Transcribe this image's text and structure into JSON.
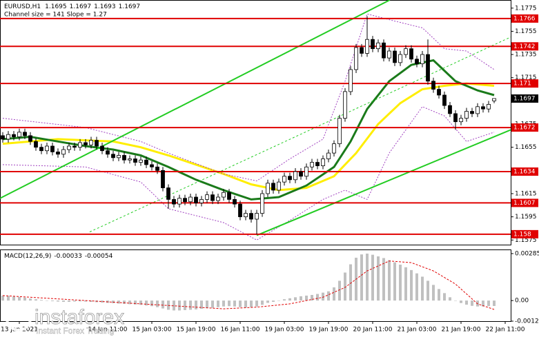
{
  "chart_data": [
    {
      "type": "candlestick",
      "title": "EURUSD,H1",
      "subtitle": "Channel size = 141 Slope = 1.27",
      "xlim": [
        -0.5,
        92
      ],
      "ylim": [
        1.1571,
        1.1782
      ],
      "yticks": [
        1.1775,
        1.1755,
        1.1735,
        1.1715,
        1.1695,
        1.1675,
        1.1655,
        1.1635,
        1.1615,
        1.1595,
        1.1575
      ],
      "levels": {
        "color": "#e00000",
        "values": [
          1.1766,
          1.1742,
          1.171,
          1.1672,
          1.1634,
          1.1607,
          1.158
        ]
      },
      "ohlc": [
        [
          1.1665,
          1.1668,
          1.1659,
          1.1662
        ],
        [
          1.1662,
          1.1669,
          1.1659,
          1.1666
        ],
        [
          1.1666,
          1.1669,
          1.1661,
          1.1664
        ],
        [
          1.1664,
          1.1671,
          1.1661,
          1.1668
        ],
        [
          1.1668,
          1.1671,
          1.1662,
          1.1665
        ],
        [
          1.1665,
          1.1668,
          1.1657,
          1.166
        ],
        [
          1.166,
          1.1663,
          1.1652,
          1.1655
        ],
        [
          1.1655,
          1.1658,
          1.1649,
          1.1652
        ],
        [
          1.1652,
          1.1659,
          1.1649,
          1.1656
        ],
        [
          1.1656,
          1.1659,
          1.1648,
          1.1651
        ],
        [
          1.1651,
          1.1654,
          1.1646,
          1.1649
        ],
        [
          1.1649,
          1.1656,
          1.1646,
          1.1653
        ],
        [
          1.1653,
          1.1659,
          1.165,
          1.1656
        ],
        [
          1.1656,
          1.1659,
          1.1652,
          1.1655
        ],
        [
          1.1655,
          1.1662,
          1.1652,
          1.1659
        ],
        [
          1.1659,
          1.1662,
          1.1654,
          1.1657
        ],
        [
          1.1657,
          1.1664,
          1.1654,
          1.1661
        ],
        [
          1.1661,
          1.1664,
          1.1653,
          1.1656
        ],
        [
          1.1656,
          1.1659,
          1.1649,
          1.1652
        ],
        [
          1.1652,
          1.1655,
          1.1646,
          1.1649
        ],
        [
          1.1649,
          1.1652,
          1.1643,
          1.1646
        ],
        [
          1.1646,
          1.1651,
          1.1643,
          1.1648
        ],
        [
          1.1648,
          1.1651,
          1.1641,
          1.1644
        ],
        [
          1.1644,
          1.1648,
          1.1641,
          1.1645
        ],
        [
          1.1645,
          1.1648,
          1.1639,
          1.1642
        ],
        [
          1.1642,
          1.1647,
          1.1639,
          1.1644
        ],
        [
          1.1644,
          1.1647,
          1.1637,
          1.164
        ],
        [
          1.164,
          1.1643,
          1.1635,
          1.1638
        ],
        [
          1.1638,
          1.1641,
          1.1632,
          1.1635
        ],
        [
          1.1635,
          1.1638,
          1.1617,
          1.162
        ],
        [
          1.162,
          1.1623,
          1.1602,
          1.161
        ],
        [
          1.161,
          1.1613,
          1.1603,
          1.1606
        ],
        [
          1.1606,
          1.1614,
          1.1603,
          1.1611
        ],
        [
          1.1611,
          1.1614,
          1.1605,
          1.1608
        ],
        [
          1.1608,
          1.1615,
          1.1605,
          1.1612
        ],
        [
          1.1612,
          1.1615,
          1.1604,
          1.1607
        ],
        [
          1.1607,
          1.1613,
          1.1604,
          1.161
        ],
        [
          1.161,
          1.1617,
          1.1607,
          1.1614
        ],
        [
          1.1614,
          1.1617,
          1.1606,
          1.1609
        ],
        [
          1.1609,
          1.1615,
          1.1606,
          1.1612
        ],
        [
          1.1612,
          1.1619,
          1.1609,
          1.1616
        ],
        [
          1.1616,
          1.1619,
          1.1607,
          1.161
        ],
        [
          1.161,
          1.1613,
          1.1603,
          1.1606
        ],
        [
          1.1606,
          1.1609,
          1.1592,
          1.1595
        ],
        [
          1.1595,
          1.1601,
          1.1592,
          1.1598
        ],
        [
          1.1598,
          1.1601,
          1.159,
          1.1593
        ],
        [
          1.1593,
          1.1601,
          1.158,
          1.1598
        ],
        [
          1.1598,
          1.1618,
          1.1595,
          1.1615
        ],
        [
          1.1615,
          1.1627,
          1.1612,
          1.1624
        ],
        [
          1.1624,
          1.1627,
          1.1615,
          1.1618
        ],
        [
          1.1618,
          1.1628,
          1.1615,
          1.1625
        ],
        [
          1.1625,
          1.1633,
          1.1622,
          1.163
        ],
        [
          1.163,
          1.1633,
          1.1624,
          1.1627
        ],
        [
          1.1627,
          1.1637,
          1.1624,
          1.1634
        ],
        [
          1.1634,
          1.1637,
          1.1627,
          1.163
        ],
        [
          1.163,
          1.1641,
          1.1627,
          1.1638
        ],
        [
          1.1638,
          1.1645,
          1.1635,
          1.1642
        ],
        [
          1.1642,
          1.1645,
          1.1636,
          1.1639
        ],
        [
          1.1639,
          1.1648,
          1.1636,
          1.1645
        ],
        [
          1.1645,
          1.1653,
          1.1642,
          1.165
        ],
        [
          1.165,
          1.1661,
          1.1647,
          1.1658
        ],
        [
          1.1658,
          1.1683,
          1.1655,
          1.168
        ],
        [
          1.168,
          1.1706,
          1.1677,
          1.1703
        ],
        [
          1.1703,
          1.1725,
          1.17,
          1.1722
        ],
        [
          1.1722,
          1.1744,
          1.1719,
          1.1741
        ],
        [
          1.1741,
          1.1744,
          1.1733,
          1.1736
        ],
        [
          1.1736,
          1.1768,
          1.1733,
          1.1748
        ],
        [
          1.1748,
          1.1751,
          1.1737,
          1.174
        ],
        [
          1.174,
          1.1748,
          1.1737,
          1.1745
        ],
        [
          1.1745,
          1.1748,
          1.1729,
          1.1732
        ],
        [
          1.1732,
          1.1741,
          1.1729,
          1.1738
        ],
        [
          1.1738,
          1.1741,
          1.1725,
          1.1728
        ],
        [
          1.1728,
          1.1738,
          1.1725,
          1.1735
        ],
        [
          1.1735,
          1.1743,
          1.1732,
          1.174
        ],
        [
          1.174,
          1.1743,
          1.1728,
          1.1731
        ],
        [
          1.1731,
          1.1734,
          1.1724,
          1.1727
        ],
        [
          1.1727,
          1.1738,
          1.1724,
          1.1735
        ],
        [
          1.1735,
          1.1748,
          1.1709,
          1.1712
        ],
        [
          1.1712,
          1.1715,
          1.1702,
          1.1705
        ],
        [
          1.1705,
          1.1708,
          1.1697,
          1.17
        ],
        [
          1.17,
          1.1703,
          1.1688,
          1.1691
        ],
        [
          1.1691,
          1.1694,
          1.1681,
          1.1684
        ],
        [
          1.1684,
          1.1687,
          1.167,
          1.1677
        ],
        [
          1.1677,
          1.1683,
          1.1674,
          1.168
        ],
        [
          1.168,
          1.1689,
          1.1677,
          1.1686
        ],
        [
          1.1686,
          1.1689,
          1.1681,
          1.1684
        ],
        [
          1.1684,
          1.1693,
          1.1681,
          1.169
        ],
        [
          1.169,
          1.1693,
          1.1685,
          1.1688
        ],
        [
          1.1688,
          1.1695,
          1.1685,
          1.1692
        ],
        [
          1.1695,
          1.1697,
          1.1693,
          1.1697
        ]
      ],
      "lines": [
        {
          "color": "#ffee00",
          "width": 3,
          "x": [
            0,
            10,
            20,
            25,
            30,
            35,
            40,
            45,
            50,
            55,
            60,
            64,
            68,
            72,
            76,
            80,
            84,
            89
          ],
          "values": [
            1.1658,
            1.1662,
            1.166,
            1.1655,
            1.1648,
            1.164,
            1.1632,
            1.1623,
            1.1618,
            1.162,
            1.163,
            1.165,
            1.1675,
            1.1693,
            1.1705,
            1.1708,
            1.171,
            1.1708
          ]
        },
        {
          "color": "#1a7a1a",
          "width": 3,
          "x": [
            0,
            5,
            10,
            15,
            20,
            25,
            30,
            35,
            40,
            45,
            50,
            55,
            60,
            63,
            66,
            70,
            74,
            78,
            82,
            86,
            89
          ],
          "values": [
            1.1662,
            1.1664,
            1.166,
            1.1656,
            1.1653,
            1.1648,
            1.1638,
            1.1627,
            1.1618,
            1.161,
            1.1612,
            1.1622,
            1.1638,
            1.166,
            1.1688,
            1.1712,
            1.1726,
            1.173,
            1.1712,
            1.1704,
            1.17
          ]
        },
        {
          "color": "#a040c0",
          "width": 1,
          "dash": "2,2",
          "x": [
            0,
            15,
            25,
            30,
            40,
            46,
            52,
            58,
            62,
            66,
            70,
            76,
            80,
            84,
            89
          ],
          "values": [
            1.168,
            1.1672,
            1.166,
            1.165,
            1.1632,
            1.1626,
            1.1645,
            1.1662,
            1.1712,
            1.177,
            1.1765,
            1.1758,
            1.174,
            1.1738,
            1.1722
          ]
        },
        {
          "color": "#a040c0",
          "width": 1,
          "dash": "2,2",
          "x": [
            0,
            15,
            25,
            30,
            40,
            46,
            52,
            58,
            62,
            66,
            70,
            76,
            80,
            84,
            89
          ],
          "values": [
            1.164,
            1.1638,
            1.1625,
            1.1602,
            1.159,
            1.1575,
            1.1592,
            1.161,
            1.1618,
            1.161,
            1.165,
            1.169,
            1.1682,
            1.166,
            1.1668
          ]
        },
        {
          "color": "#22cc22",
          "width": 2,
          "x": [
            -0.5,
            70.1
          ],
          "values": [
            1.1611,
            1.1782
          ]
        },
        {
          "color": "#22cc22",
          "width": 2,
          "x": [
            46,
            92
          ],
          "values": [
            1.1579,
            1.167
          ]
        },
        {
          "color": "#22cc22",
          "width": 1,
          "dash": "3,3",
          "x": [
            15.75,
            92
          ],
          "values": [
            1.1582,
            1.175
          ]
        }
      ]
    },
    {
      "type": "bar",
      "title": "MACD(12,26,9)",
      "color": "#c0c0c0",
      "xlim": [
        -0.5,
        92
      ],
      "ylim": [
        -0.00125,
        0.0031
      ],
      "yticks": [
        0.00285,
        {
          "value": 0,
          "label": "0.00"
        },
        -0.00125
      ],
      "xticks": [
        {
          "value": 3,
          "label": "13 Jan 2021"
        },
        {
          "value": 19,
          "label": "14 Jan 11:00"
        },
        {
          "value": 27,
          "label": "15 Jan 03:00"
        },
        {
          "value": 35,
          "label": "15 Jan 19:00"
        },
        {
          "value": 43,
          "label": "16 Jan 11:00"
        },
        {
          "value": 51,
          "label": "19 Jan 03:00"
        },
        {
          "value": 59,
          "label": "19 Jan 19:00"
        },
        {
          "value": 67,
          "label": "20 Jan 11:00"
        },
        {
          "value": 75,
          "label": "21 Jan 03:00"
        },
        {
          "value": 83,
          "label": "21 Jan 19:00"
        },
        {
          "value": 91,
          "label": "22 Jan 11:00"
        }
      ],
      "values": [
        0.0003,
        0.00028,
        0.00025,
        0.00022,
        0.00018,
        0.00012,
        8e-05,
        4e-05,
        0,
        -4e-05,
        -6e-05,
        -8e-05,
        -8e-05,
        -6e-05,
        -5e-05,
        -6e-05,
        -8e-05,
        -0.0001,
        -0.00012,
        -0.00014,
        -0.00016,
        -0.00018,
        -0.0002,
        -0.00022,
        -0.00024,
        -0.00026,
        -0.0003,
        -0.00034,
        -0.0004,
        -0.00048,
        -0.00056,
        -0.0006,
        -0.0006,
        -0.00058,
        -0.00056,
        -0.00054,
        -0.0005,
        -0.00046,
        -0.00044,
        -0.0004,
        -0.00036,
        -0.00034,
        -0.00036,
        -0.0004,
        -0.00042,
        -0.0004,
        -0.00036,
        -0.00026,
        -0.00014,
        -8e-05,
        0,
        8e-05,
        0.00014,
        0.0002,
        0.00026,
        0.0003,
        0.00034,
        0.0004,
        0.00048,
        0.00056,
        0.0008,
        0.0012,
        0.0017,
        0.0022,
        0.0026,
        0.0028,
        0.00285,
        0.00278,
        0.00268,
        0.00258,
        0.00245,
        0.00232,
        0.00218,
        0.00202,
        0.00185,
        0.00165,
        0.00145,
        0.0012,
        0.00095,
        0.0007,
        0.00045,
        0.0002,
        0,
        -0.00015,
        -0.00025,
        -0.00032,
        -0.00036,
        -0.00036,
        -0.00034,
        -0.00033
      ],
      "signal": {
        "color": "#e00000",
        "x": [
          0,
          10,
          20,
          30,
          40,
          46,
          52,
          58,
          62,
          66,
          70,
          74,
          78,
          82,
          86,
          89
        ],
        "values": [
          0.0003,
          0.0001,
          -0.0001,
          -0.0003,
          -0.0005,
          -0.0004,
          -0.0002,
          0.0002,
          0.0008,
          0.0018,
          0.0024,
          0.0023,
          0.0018,
          0.001,
          -0.0002,
          -0.00054
        ]
      }
    }
  ],
  "watermark": {
    "brand": "instaforex",
    "tagline": "Instant Forex Trading"
  }
}
